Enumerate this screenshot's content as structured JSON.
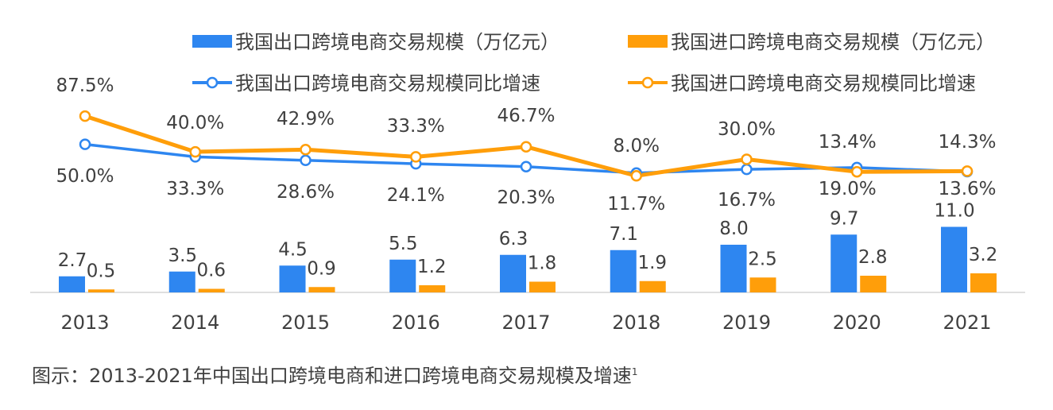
{
  "chart_data": {
    "type": "bar",
    "categories": [
      "2013",
      "2014",
      "2015",
      "2016",
      "2017",
      "2018",
      "2019",
      "2020",
      "2021"
    ],
    "series": [
      {
        "name": "我国出口跨境电商交易规模（万亿元）",
        "kind": "bar",
        "color": "#2e86f0",
        "values": [
          2.7,
          3.5,
          4.5,
          5.5,
          6.3,
          7.1,
          8.0,
          9.7,
          11.0
        ],
        "labels": [
          "2.7",
          "3.5",
          "4.5",
          "5.5",
          "6.3",
          "7.1",
          "8.0",
          "9.7",
          "11.0"
        ]
      },
      {
        "name": "我国进口跨境电商交易规模（万亿元）",
        "kind": "bar",
        "color": "#ff9e0a",
        "values": [
          0.5,
          0.6,
          0.9,
          1.2,
          1.8,
          1.9,
          2.5,
          2.8,
          3.2
        ],
        "labels": [
          "0.5",
          "0.6",
          "0.9",
          "1.2",
          "1.8",
          "1.9",
          "2.5",
          "2.8",
          "3.2"
        ]
      },
      {
        "name": "我国出口跨境电商交易规模同比增速",
        "kind": "line",
        "color": "#2e86f0",
        "values": [
          50.0,
          33.3,
          28.6,
          24.1,
          20.3,
          11.7,
          16.7,
          19.0,
          13.6
        ],
        "labels": [
          "50.0%",
          "33.3%",
          "28.6%",
          "24.1%",
          "20.3%",
          "11.7%",
          "16.7%",
          "19.0%",
          "13.6%"
        ]
      },
      {
        "name": "我国进口跨境电商交易规模同比增速",
        "kind": "line",
        "color": "#ff9e0a",
        "values": [
          87.5,
          40.0,
          42.9,
          33.3,
          46.7,
          8.0,
          30.0,
          13.4,
          14.3
        ],
        "labels": [
          "87.5%",
          "40.0%",
          "42.9%",
          "33.3%",
          "46.7%",
          "8.0%",
          "30.0%",
          "13.4%",
          "14.3%"
        ]
      }
    ],
    "legend_position": "top",
    "title": "",
    "xlabel": "",
    "ylabel": "",
    "grid": false
  },
  "caption": {
    "text": "图示：2013-2021年中国出口跨境电商和进口跨境电商交易规模及增速",
    "footnote": "1"
  }
}
